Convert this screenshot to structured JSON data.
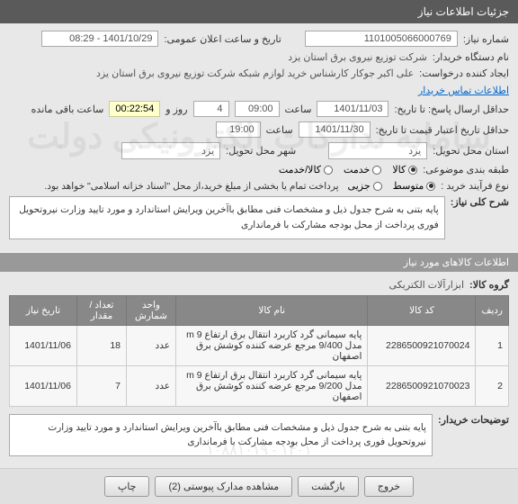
{
  "header": {
    "title": "جزئیات اطلاعات نیاز"
  },
  "info": {
    "need_no_label": "شماره نیاز:",
    "need_no": "1101005066000769",
    "announce_label": "تاریخ و ساعت اعلان عمومی:",
    "announce_val": "1401/10/29 - 08:29",
    "buyer_org_label": "نام دستگاه خریدار:",
    "buyer_org": "شرکت توزیع نیروی برق استان یزد",
    "requester_label": "ایجاد کننده درخواست:",
    "requester": "علی اکبر جوکار  کارشناس خرید لوازم شبکه  شرکت توزیع نیروی برق استان یزد",
    "contact_link": "اطلاعات تماس خریدار",
    "deadline_label": "حداقل ارسال پاسخ: تا تاریخ:",
    "deadline_date": "1401/11/03",
    "time_label": "ساعت",
    "deadline_time": "09:00",
    "days": "4",
    "days_label": "روز و",
    "countdown": "00:22:54",
    "remain_label": "ساعت باقی مانده",
    "validity_label": "حداقل تاریخ اعتبار قیمت تا تاریخ:",
    "validity_date": "1401/11/30",
    "validity_time": "19:00",
    "province_label": "استان محل تحویل:",
    "province": "یزد",
    "city_label": "شهر محل تحویل:",
    "city": "یزد",
    "subject_class_label": "طبقه بندی موضوعی:",
    "class_opts": [
      {
        "label": "کالا",
        "selected": true
      },
      {
        "label": "خدمت",
        "selected": false
      },
      {
        "label": "کالا/خدمت",
        "selected": false
      }
    ],
    "process_label": "نوع فرآیند خرید :",
    "process_opts": [
      {
        "label": "متوسط",
        "selected": true
      },
      {
        "label": "جزیی",
        "selected": false
      }
    ],
    "process_note": "پرداخت تمام یا بخشی از مبلغ خرید،از محل \"اسناد خزانه اسلامی\" خواهد بود.",
    "summary_label": "شرح کلی نیاز:",
    "summary": "پایه بتنی به شرح جدول ذیل و مشخصات فنی  مطابق باآخرین ویرایش استاندارد و مورد تایید وزارت نیروتحویل فوری پرداخت از محل بودجه مشارکت با فرمانداری"
  },
  "goods": {
    "section_title": "اطلاعات کالاهای مورد نیاز",
    "group_label": "گروه کالا:",
    "group_val": "ابزارآلات الکتریکی",
    "columns": [
      "ردیف",
      "کد کالا",
      "نام کالا",
      "واحد شمارش",
      "تعداد / مقدار",
      "تاریخ نیاز"
    ],
    "rows": [
      {
        "n": "1",
        "code": "2286500921070024",
        "name": "پایه سیمانی گرد کاربرد انتقال برق ارتفاع 9 m مدل 9/400 مرجع عرضه کننده کوشش برق اصفهان",
        "unit": "عدد",
        "qty": "18",
        "date": "1401/11/06"
      },
      {
        "n": "2",
        "code": "2286500921070023",
        "name": "پایه سیمانی گرد کاربرد انتقال برق ارتفاع 9 m مدل 9/200 مرجع عرضه کننده کوشش برق اصفهان",
        "unit": "عدد",
        "qty": "7",
        "date": "1401/11/06"
      }
    ],
    "buyer_notes_label": "توضیحات خریدار:",
    "buyer_notes": "پایه بتنی به شرح جدول ذیل و مشخصات فنی  مطابق باآخرین ویرایش استاندارد و مورد تایید وزارت نیروتحویل فوری پرداخت از محل بودجه مشارکت با فرمانداری"
  },
  "watermarks": {
    "main": "سامانه تدارکات الکترونیکی دولت",
    "sub": "۱۴۰۱ - ۱۰۸۸۱۰۱۹"
  },
  "buttons": {
    "exit": "خروج",
    "back": "بازگشت",
    "attach": "مشاهده مدارک پیوستی  (2)",
    "print": "چاپ"
  }
}
